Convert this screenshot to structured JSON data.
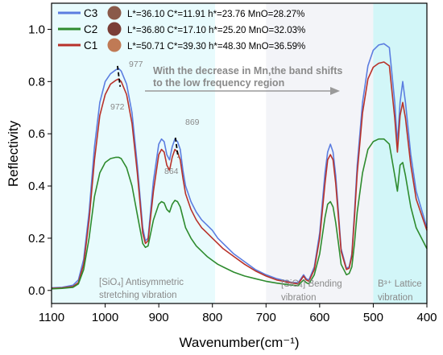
{
  "chart_data": {
    "type": "line",
    "xlabel": "Wavenumber(cm⁻¹)",
    "ylabel": "Reflectivity",
    "xlim": [
      1100,
      400
    ],
    "ylim": [
      -0.05,
      1.1
    ],
    "x_ticks": [
      "1100",
      "1000",
      "900",
      "800",
      "700",
      "600",
      "500",
      "400"
    ],
    "y_ticks": [
      "0.0",
      "0.2",
      "0.4",
      "0.6",
      "0.8",
      "1.0"
    ],
    "legend": {
      "placement": "top-left",
      "entries": [
        {
          "name": "C3",
          "color": "#5b7de0",
          "swatch": "#8a5a4a",
          "desc": "L*=36.10 C*=11.91 h*=23.76 MnO=28.27%"
        },
        {
          "name": "C2",
          "color": "#2e8b2e",
          "swatch": "#7a3e36",
          "desc": "L*=36.80 C*=17.10 h*=25.20 MnO=32.03%"
        },
        {
          "name": "C1",
          "color": "#b8322a",
          "swatch": "#c07a55",
          "desc": "L*=50.71 C*=39.30 h*=48.30 MnO=36.59%"
        }
      ]
    },
    "regions": [
      {
        "x_from": 1100,
        "x_to": 795,
        "color": "#e8fbfd",
        "label_1": "[SiO₄] Antisymmetric",
        "label_2": "stretching vibration"
      },
      {
        "x_from": 700,
        "x_to": 500,
        "color": "#f3f4f8",
        "label_1": "[SiO₄] Bending",
        "label_2": "vibration"
      },
      {
        "x_from": 500,
        "x_to": 400,
        "color": "#d2f6f8",
        "label_1": "B³⁺ Lattice",
        "label_2": "vibration"
      }
    ],
    "annotation_shift": {
      "line_1": "With the decrease in Mn,the band shifts",
      "line_2": "to the low frequency region"
    },
    "peak_labels": [
      "977",
      "972",
      "869",
      "864"
    ],
    "series": [
      {
        "name": "C3",
        "color": "#5b7de0",
        "x": [
          1100,
          1080,
          1060,
          1050,
          1040,
          1030,
          1020,
          1010,
          1000,
          990,
          980,
          975,
          970,
          960,
          950,
          940,
          930,
          925,
          920,
          910,
          900,
          895,
          890,
          885,
          880,
          875,
          870,
          865,
          860,
          855,
          850,
          840,
          830,
          820,
          810,
          800,
          790,
          780,
          760,
          740,
          720,
          700,
          680,
          660,
          650,
          640,
          635,
          630,
          625,
          620,
          610,
          600,
          590,
          585,
          580,
          575,
          570,
          565,
          560,
          550,
          545,
          540,
          535,
          530,
          520,
          510,
          500,
          490,
          480,
          470,
          460,
          455,
          450,
          445,
          440,
          430,
          420,
          400
        ],
        "y": [
          0.01,
          0.012,
          0.02,
          0.04,
          0.12,
          0.3,
          0.55,
          0.72,
          0.8,
          0.83,
          0.845,
          0.85,
          0.84,
          0.79,
          0.68,
          0.48,
          0.24,
          0.19,
          0.2,
          0.42,
          0.56,
          0.58,
          0.57,
          0.52,
          0.5,
          0.55,
          0.58,
          0.57,
          0.54,
          0.46,
          0.4,
          0.34,
          0.3,
          0.27,
          0.25,
          0.23,
          0.2,
          0.18,
          0.14,
          0.11,
          0.08,
          0.06,
          0.045,
          0.035,
          0.03,
          0.03,
          0.045,
          0.06,
          0.045,
          0.04,
          0.09,
          0.22,
          0.45,
          0.53,
          0.56,
          0.53,
          0.44,
          0.3,
          0.16,
          0.085,
          0.09,
          0.14,
          0.3,
          0.48,
          0.72,
          0.86,
          0.92,
          0.94,
          0.945,
          0.93,
          0.72,
          0.56,
          0.72,
          0.8,
          0.72,
          0.52,
          0.38,
          0.24
        ]
      },
      {
        "name": "C1",
        "color": "#b8322a",
        "x": [
          1100,
          1080,
          1060,
          1050,
          1040,
          1030,
          1020,
          1010,
          1000,
          990,
          980,
          975,
          970,
          960,
          950,
          940,
          930,
          925,
          920,
          910,
          900,
          895,
          890,
          885,
          880,
          875,
          870,
          865,
          860,
          855,
          850,
          840,
          830,
          820,
          810,
          800,
          790,
          780,
          760,
          740,
          720,
          700,
          680,
          660,
          650,
          640,
          635,
          630,
          625,
          620,
          610,
          600,
          590,
          585,
          580,
          575,
          570,
          565,
          560,
          550,
          545,
          540,
          535,
          530,
          520,
          510,
          500,
          490,
          480,
          470,
          460,
          455,
          450,
          445,
          440,
          430,
          420,
          400
        ],
        "y": [
          0.008,
          0.01,
          0.015,
          0.03,
          0.1,
          0.27,
          0.5,
          0.67,
          0.75,
          0.79,
          0.805,
          0.81,
          0.8,
          0.75,
          0.64,
          0.45,
          0.22,
          0.18,
          0.19,
          0.38,
          0.52,
          0.54,
          0.53,
          0.48,
          0.46,
          0.51,
          0.54,
          0.53,
          0.5,
          0.43,
          0.37,
          0.31,
          0.27,
          0.24,
          0.22,
          0.2,
          0.18,
          0.16,
          0.13,
          0.1,
          0.075,
          0.055,
          0.04,
          0.032,
          0.028,
          0.025,
          0.04,
          0.055,
          0.04,
          0.035,
          0.08,
          0.2,
          0.41,
          0.5,
          0.52,
          0.5,
          0.41,
          0.28,
          0.15,
          0.08,
          0.085,
          0.13,
          0.28,
          0.45,
          0.68,
          0.81,
          0.855,
          0.87,
          0.875,
          0.86,
          0.66,
          0.53,
          0.67,
          0.72,
          0.66,
          0.48,
          0.35,
          0.23
        ]
      },
      {
        "name": "C2",
        "color": "#2e8b2e",
        "x": [
          1100,
          1080,
          1060,
          1050,
          1040,
          1030,
          1020,
          1010,
          1000,
          990,
          980,
          975,
          970,
          960,
          950,
          940,
          930,
          925,
          920,
          910,
          900,
          895,
          890,
          885,
          880,
          875,
          870,
          865,
          860,
          855,
          850,
          840,
          830,
          820,
          810,
          800,
          790,
          780,
          760,
          740,
          720,
          700,
          680,
          660,
          650,
          640,
          635,
          630,
          625,
          620,
          610,
          600,
          590,
          585,
          580,
          575,
          570,
          565,
          560,
          550,
          545,
          540,
          535,
          530,
          520,
          510,
          500,
          490,
          480,
          470,
          460,
          455,
          450,
          445,
          440,
          430,
          420,
          400
        ],
        "y": [
          0.006,
          0.008,
          0.012,
          0.025,
          0.08,
          0.2,
          0.36,
          0.45,
          0.49,
          0.505,
          0.51,
          0.51,
          0.505,
          0.47,
          0.4,
          0.29,
          0.18,
          0.165,
          0.17,
          0.27,
          0.33,
          0.34,
          0.335,
          0.31,
          0.3,
          0.33,
          0.345,
          0.34,
          0.32,
          0.28,
          0.24,
          0.2,
          0.17,
          0.15,
          0.13,
          0.115,
          0.1,
          0.09,
          0.07,
          0.055,
          0.045,
          0.035,
          0.028,
          0.022,
          0.02,
          0.018,
          0.03,
          0.04,
          0.03,
          0.025,
          0.06,
          0.14,
          0.28,
          0.33,
          0.34,
          0.32,
          0.26,
          0.18,
          0.1,
          0.06,
          0.065,
          0.09,
          0.18,
          0.3,
          0.45,
          0.54,
          0.57,
          0.58,
          0.58,
          0.56,
          0.44,
          0.38,
          0.48,
          0.49,
          0.44,
          0.32,
          0.24,
          0.16
        ]
      }
    ]
  }
}
